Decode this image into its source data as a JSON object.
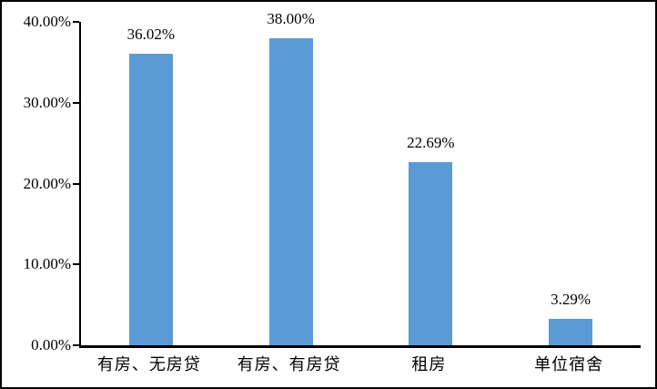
{
  "chart_data": {
    "type": "bar",
    "categories": [
      "有房、无房贷",
      "有房、有房贷",
      "租房",
      "单位宿舍"
    ],
    "values": [
      36.02,
      38.0,
      22.69,
      3.29
    ],
    "data_labels": [
      "36.02%",
      "38.00%",
      "22.69%",
      "3.29%"
    ],
    "title": "",
    "xlabel": "",
    "ylabel": "",
    "y_axis": {
      "tick_labels": [
        "40.00%",
        "30.00%",
        "20.00%",
        "10.00%",
        "0.00%"
      ],
      "tick_values": [
        40,
        30,
        20,
        10,
        0
      ],
      "min": 0,
      "max": 40
    },
    "grid": false,
    "legend": false,
    "colors": {
      "bar_fill": "#5B9BD5",
      "axis": "#000000",
      "text": "#000000",
      "frame_border": "#000000",
      "background": "#FFFFFF"
    }
  }
}
